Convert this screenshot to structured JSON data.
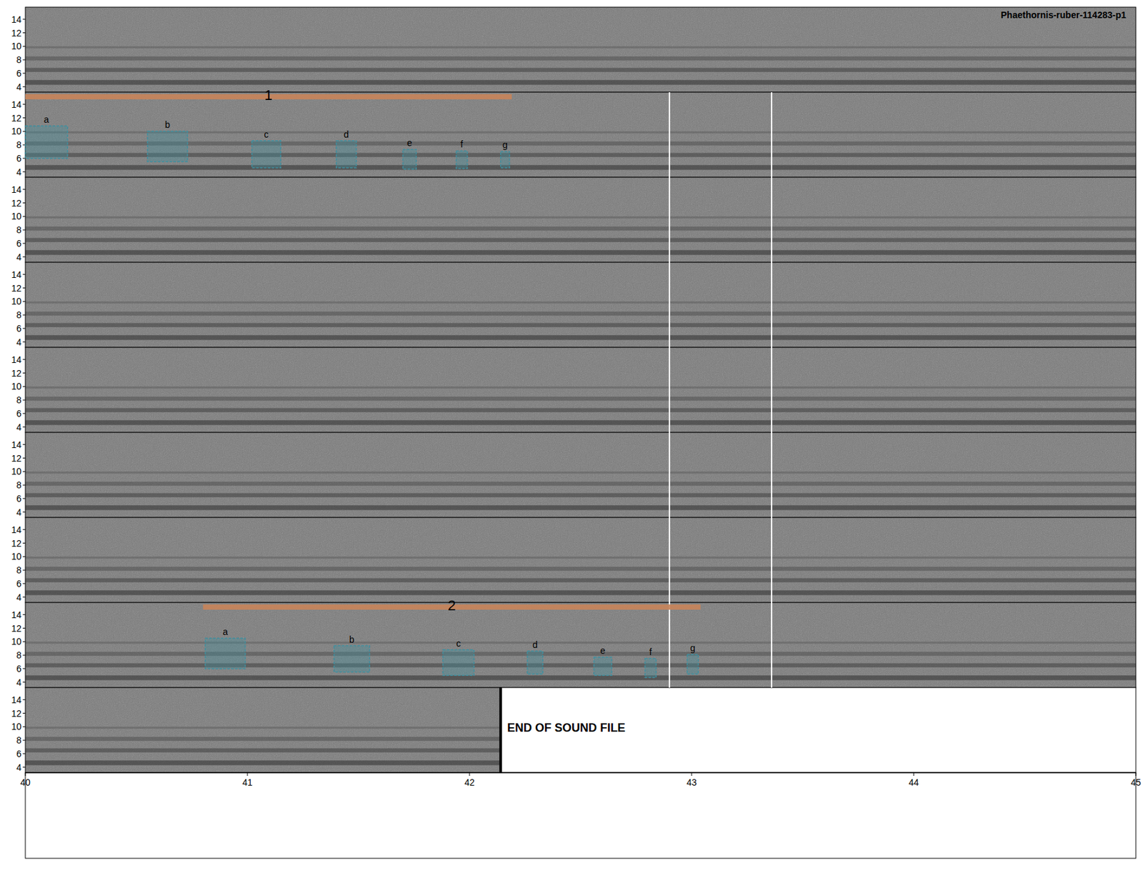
{
  "chart_data": {
    "type": "spectrogram",
    "title": "Phaethornis-ruber-114283-p1",
    "xlim": [
      40,
      45
    ],
    "xticks": [
      40,
      41,
      42,
      43,
      44,
      45
    ],
    "ylim": [
      3.2,
      15.8
    ],
    "yticks": [
      4,
      6,
      8,
      10,
      12,
      14
    ],
    "rows": 9,
    "dividers": [
      {
        "time": 42.9,
        "rows": [
          1,
          7
        ]
      },
      {
        "time": 43.36,
        "rows": [
          1,
          7
        ]
      }
    ],
    "selections": [
      {
        "label": "1",
        "row": 1,
        "start": 40.0,
        "end": 42.19,
        "color": "#c8845a",
        "elements": {
          "color": "#3f8f9f",
          "items": [
            {
              "label": "a",
              "start": 40.0,
              "end": 40.19,
              "low": 6.0,
              "high": 10.8
            },
            {
              "label": "b",
              "start": 40.55,
              "end": 40.73,
              "low": 5.5,
              "high": 10.0
            },
            {
              "label": "c",
              "start": 41.02,
              "end": 41.15,
              "low": 4.6,
              "high": 8.6
            },
            {
              "label": "d",
              "start": 41.4,
              "end": 41.49,
              "low": 4.6,
              "high": 8.6
            },
            {
              "label": "e",
              "start": 41.7,
              "end": 41.76,
              "low": 4.4,
              "high": 7.3
            },
            {
              "label": "f",
              "start": 41.94,
              "end": 41.99,
              "low": 4.5,
              "high": 7.1
            },
            {
              "label": "g",
              "start": 42.14,
              "end": 42.18,
              "low": 4.6,
              "high": 7.0
            }
          ]
        }
      },
      {
        "label": "2",
        "row": 7,
        "start": 40.8,
        "end": 43.04,
        "color": "#c8845a",
        "elements": {
          "color": "#3f8f9f",
          "items": [
            {
              "label": "a",
              "start": 40.81,
              "end": 40.99,
              "low": 6.0,
              "high": 10.5
            },
            {
              "label": "b",
              "start": 41.39,
              "end": 41.55,
              "low": 5.5,
              "high": 9.4
            },
            {
              "label": "c",
              "start": 41.88,
              "end": 42.02,
              "low": 5.0,
              "high": 8.8
            },
            {
              "label": "d",
              "start": 42.26,
              "end": 42.33,
              "low": 5.2,
              "high": 8.6
            },
            {
              "label": "e",
              "start": 42.56,
              "end": 42.64,
              "low": 5.0,
              "high": 7.7
            },
            {
              "label": "f",
              "start": 42.79,
              "end": 42.84,
              "low": 4.7,
              "high": 7.5
            },
            {
              "label": "g",
              "start": 42.98,
              "end": 43.03,
              "low": 5.2,
              "high": 8.1
            }
          ]
        }
      }
    ],
    "end_of_file": {
      "row": 8,
      "time": 42.14,
      "label": "END OF SOUND FILE"
    }
  }
}
